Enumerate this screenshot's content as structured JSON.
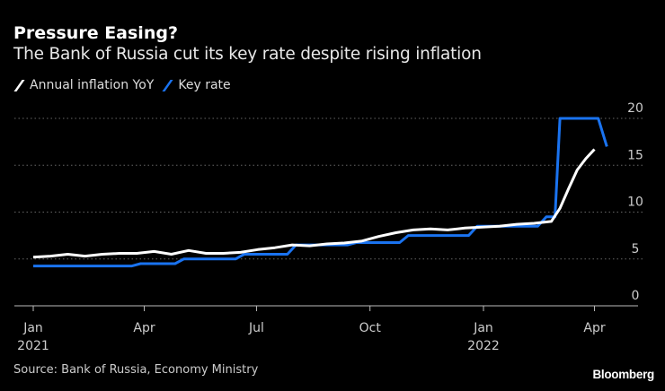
{
  "title": "Pressure Easing?",
  "subtitle": "The Bank of Russia cut its key rate despite rising inflation",
  "source": "Source: Bank of Russia, Economy Ministry",
  "logo": "Bloomberg",
  "colors": {
    "inflation": "#ffffff",
    "key_rate": "#1a73f0",
    "background": "#000000",
    "grid": "#666666"
  },
  "chart_data": {
    "type": "line",
    "title": "Pressure Easing?",
    "legend_placement": "top-left",
    "grid": true,
    "ylim": [
      0,
      20
    ],
    "yticks": [
      0,
      5,
      10,
      15,
      20
    ],
    "xticks": [
      {
        "date": "2021-01-01",
        "label": "Jan",
        "sublabel": "2021"
      },
      {
        "date": "2021-04-01",
        "label": "Apr",
        "sublabel": ""
      },
      {
        "date": "2021-07-01",
        "label": "Jul",
        "sublabel": ""
      },
      {
        "date": "2021-10-01",
        "label": "Oct",
        "sublabel": ""
      },
      {
        "date": "2022-01-01",
        "label": "Jan",
        "sublabel": "2022"
      },
      {
        "date": "2022-04-01",
        "label": "Apr",
        "sublabel": ""
      }
    ],
    "series": [
      {
        "name": "Annual inflation YoY",
        "color": "#ffffff",
        "points": [
          [
            "2021-01-01",
            5.2
          ],
          [
            "2021-01-15",
            5.3
          ],
          [
            "2021-01-29",
            5.5
          ],
          [
            "2021-02-12",
            5.3
          ],
          [
            "2021-02-26",
            5.5
          ],
          [
            "2021-03-12",
            5.6
          ],
          [
            "2021-03-26",
            5.6
          ],
          [
            "2021-04-09",
            5.8
          ],
          [
            "2021-04-23",
            5.5
          ],
          [
            "2021-05-07",
            5.9
          ],
          [
            "2021-05-21",
            5.6
          ],
          [
            "2021-06-04",
            5.6
          ],
          [
            "2021-06-18",
            5.7
          ],
          [
            "2021-07-02",
            6.0
          ],
          [
            "2021-07-16",
            6.2
          ],
          [
            "2021-07-30",
            6.5
          ],
          [
            "2021-08-13",
            6.4
          ],
          [
            "2021-08-27",
            6.6
          ],
          [
            "2021-09-10",
            6.7
          ],
          [
            "2021-09-24",
            6.9
          ],
          [
            "2021-10-08",
            7.4
          ],
          [
            "2021-10-22",
            7.8
          ],
          [
            "2021-11-05",
            8.1
          ],
          [
            "2021-11-19",
            8.2
          ],
          [
            "2021-12-03",
            8.1
          ],
          [
            "2021-12-17",
            8.3
          ],
          [
            "2021-12-31",
            8.4
          ],
          [
            "2022-01-14",
            8.5
          ],
          [
            "2022-01-28",
            8.7
          ],
          [
            "2022-02-11",
            8.8
          ],
          [
            "2022-02-25",
            9.0
          ],
          [
            "2022-03-04",
            10.4
          ],
          [
            "2022-03-11",
            12.5
          ],
          [
            "2022-03-18",
            14.5
          ],
          [
            "2022-03-25",
            15.7
          ],
          [
            "2022-04-01",
            16.7
          ]
        ]
      },
      {
        "name": "Key rate",
        "color": "#1a73f0",
        "points": [
          [
            "2021-01-01",
            4.25
          ],
          [
            "2021-03-22",
            4.25
          ],
          [
            "2021-03-29",
            4.5
          ],
          [
            "2021-04-26",
            4.5
          ],
          [
            "2021-05-03",
            5.0
          ],
          [
            "2021-06-14",
            5.0
          ],
          [
            "2021-06-21",
            5.5
          ],
          [
            "2021-07-26",
            5.5
          ],
          [
            "2021-08-02",
            6.5
          ],
          [
            "2021-09-13",
            6.5
          ],
          [
            "2021-09-20",
            6.75
          ],
          [
            "2021-10-25",
            6.75
          ],
          [
            "2021-11-01",
            7.5
          ],
          [
            "2021-12-20",
            7.5
          ],
          [
            "2021-12-27",
            8.5
          ],
          [
            "2022-02-14",
            8.5
          ],
          [
            "2022-02-21",
            9.5
          ],
          [
            "2022-02-28",
            9.5
          ],
          [
            "2022-03-04",
            20.0
          ],
          [
            "2022-04-04",
            20.0
          ],
          [
            "2022-04-11",
            17.0
          ]
        ]
      }
    ]
  }
}
